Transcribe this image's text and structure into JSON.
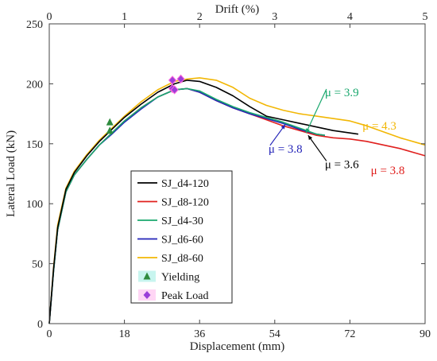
{
  "chart_data": {
    "type": "line",
    "xlabel": "Displacement (mm)",
    "ylabel": "Lateral Load (kN)",
    "x2label": "Drift (%)",
    "xlim": [
      0,
      90
    ],
    "ylim": [
      0,
      250
    ],
    "x2lim": [
      0,
      5
    ],
    "xticks": [
      "0",
      "18",
      "36",
      "54",
      "72",
      "90"
    ],
    "yticks": [
      "0",
      "50",
      "100",
      "150",
      "200",
      "250"
    ],
    "x2ticks": [
      "0",
      "1",
      "2",
      "3",
      "4",
      "5"
    ],
    "grid": false,
    "legend_position": "center-left",
    "series": [
      {
        "name": "SJ_d4-120",
        "color": "#000000",
        "x": [
          0,
          1,
          2,
          4,
          6,
          9,
          12,
          15,
          18,
          22,
          26,
          30,
          33,
          36,
          40,
          44,
          48,
          52,
          56,
          60,
          64,
          68,
          70,
          72,
          74
        ],
        "y": [
          0,
          45,
          80,
          112,
          126,
          140,
          152,
          162,
          172,
          183,
          193,
          200,
          203,
          202,
          197,
          190,
          181,
          173,
          170,
          167,
          164,
          161,
          160,
          159,
          158
        ]
      },
      {
        "name": "SJ_d8-120",
        "color": "#e0201e",
        "x": [
          0,
          1,
          2,
          4,
          6,
          9,
          12,
          15,
          18,
          22,
          26,
          30,
          33,
          36,
          40,
          44,
          48,
          52,
          56,
          60,
          64,
          68,
          72,
          76,
          80,
          84,
          88,
          90
        ],
        "y": [
          0,
          43,
          78,
          110,
          124,
          137,
          149,
          159,
          169,
          180,
          189,
          195,
          196,
          193,
          186,
          180,
          175,
          170,
          165,
          161,
          157,
          155,
          154,
          152,
          149,
          146,
          142,
          140
        ]
      },
      {
        "name": "SJ_d4-30",
        "color": "#1aa86e",
        "x": [
          0,
          1,
          2,
          4,
          6,
          9,
          12,
          15,
          18,
          22,
          26,
          30,
          33,
          36,
          40,
          44,
          48,
          52,
          56,
          60,
          64,
          66
        ],
        "y": [
          0,
          43,
          78,
          110,
          124,
          137,
          149,
          159,
          169,
          180,
          189,
          195,
          196,
          194,
          187,
          181,
          176,
          172,
          168,
          163,
          158,
          157
        ]
      },
      {
        "name": "SJ_d6-60",
        "color": "#2323b8",
        "x": [
          0,
          1,
          2,
          4,
          6,
          9,
          12,
          15,
          18,
          22,
          26,
          30,
          33,
          36,
          40,
          44,
          48,
          52,
          56,
          60,
          64,
          66
        ],
        "y": [
          0,
          43,
          78,
          110,
          124,
          137,
          149,
          158,
          168,
          179,
          189,
          195,
          196,
          193,
          186,
          180,
          175,
          171,
          167,
          162,
          158,
          157
        ]
      },
      {
        "name": "SJ_d8-60",
        "color": "#f2b705",
        "x": [
          0,
          1,
          2,
          4,
          6,
          9,
          12,
          15,
          18,
          22,
          26,
          30,
          33,
          36,
          40,
          44,
          48,
          52,
          56,
          60,
          64,
          68,
          72,
          76,
          80,
          84,
          88,
          90
        ],
        "y": [
          0,
          46,
          82,
          113,
          127,
          141,
          153,
          163,
          173,
          185,
          195,
          202,
          204,
          205,
          203,
          197,
          188,
          182,
          178,
          175,
          173,
          171,
          169,
          165,
          160,
          155,
          151,
          149
        ]
      }
    ],
    "markers": [
      {
        "name": "Yielding",
        "shape": "triangle",
        "color": "#2e8b3e",
        "points": [
          {
            "x": 14.5,
            "y": 168
          },
          {
            "x": 14.5,
            "y": 161
          }
        ]
      },
      {
        "name": "Peak Load",
        "shape": "diamond",
        "color": "#9b3fd9",
        "points": [
          {
            "x": 29.5,
            "y": 203
          },
          {
            "x": 31.5,
            "y": 204
          },
          {
            "x": 29.5,
            "y": 196
          },
          {
            "x": 30.0,
            "y": 195
          }
        ]
      }
    ],
    "annotations": [
      {
        "text": "μ = 3.9",
        "color": "#1aa86e",
        "at": {
          "x": 66,
          "y": 193
        },
        "arrow_to": {
          "x": 61.5,
          "y": 159
        }
      },
      {
        "text": "μ = 4.3",
        "color": "#f2b705",
        "at": {
          "x": 75,
          "y": 165
        }
      },
      {
        "text": "μ = 3.8",
        "color": "#2323b8",
        "at": {
          "x": 52.5,
          "y": 146
        },
        "arrow_to": {
          "x": 56.5,
          "y": 166
        }
      },
      {
        "text": "μ = 3.6",
        "color": "#000000",
        "at": {
          "x": 66,
          "y": 133
        },
        "arrow_to": {
          "x": 62,
          "y": 157
        }
      },
      {
        "text": "μ = 3.8",
        "color": "#e0201e",
        "at": {
          "x": 77,
          "y": 128
        }
      }
    ]
  }
}
